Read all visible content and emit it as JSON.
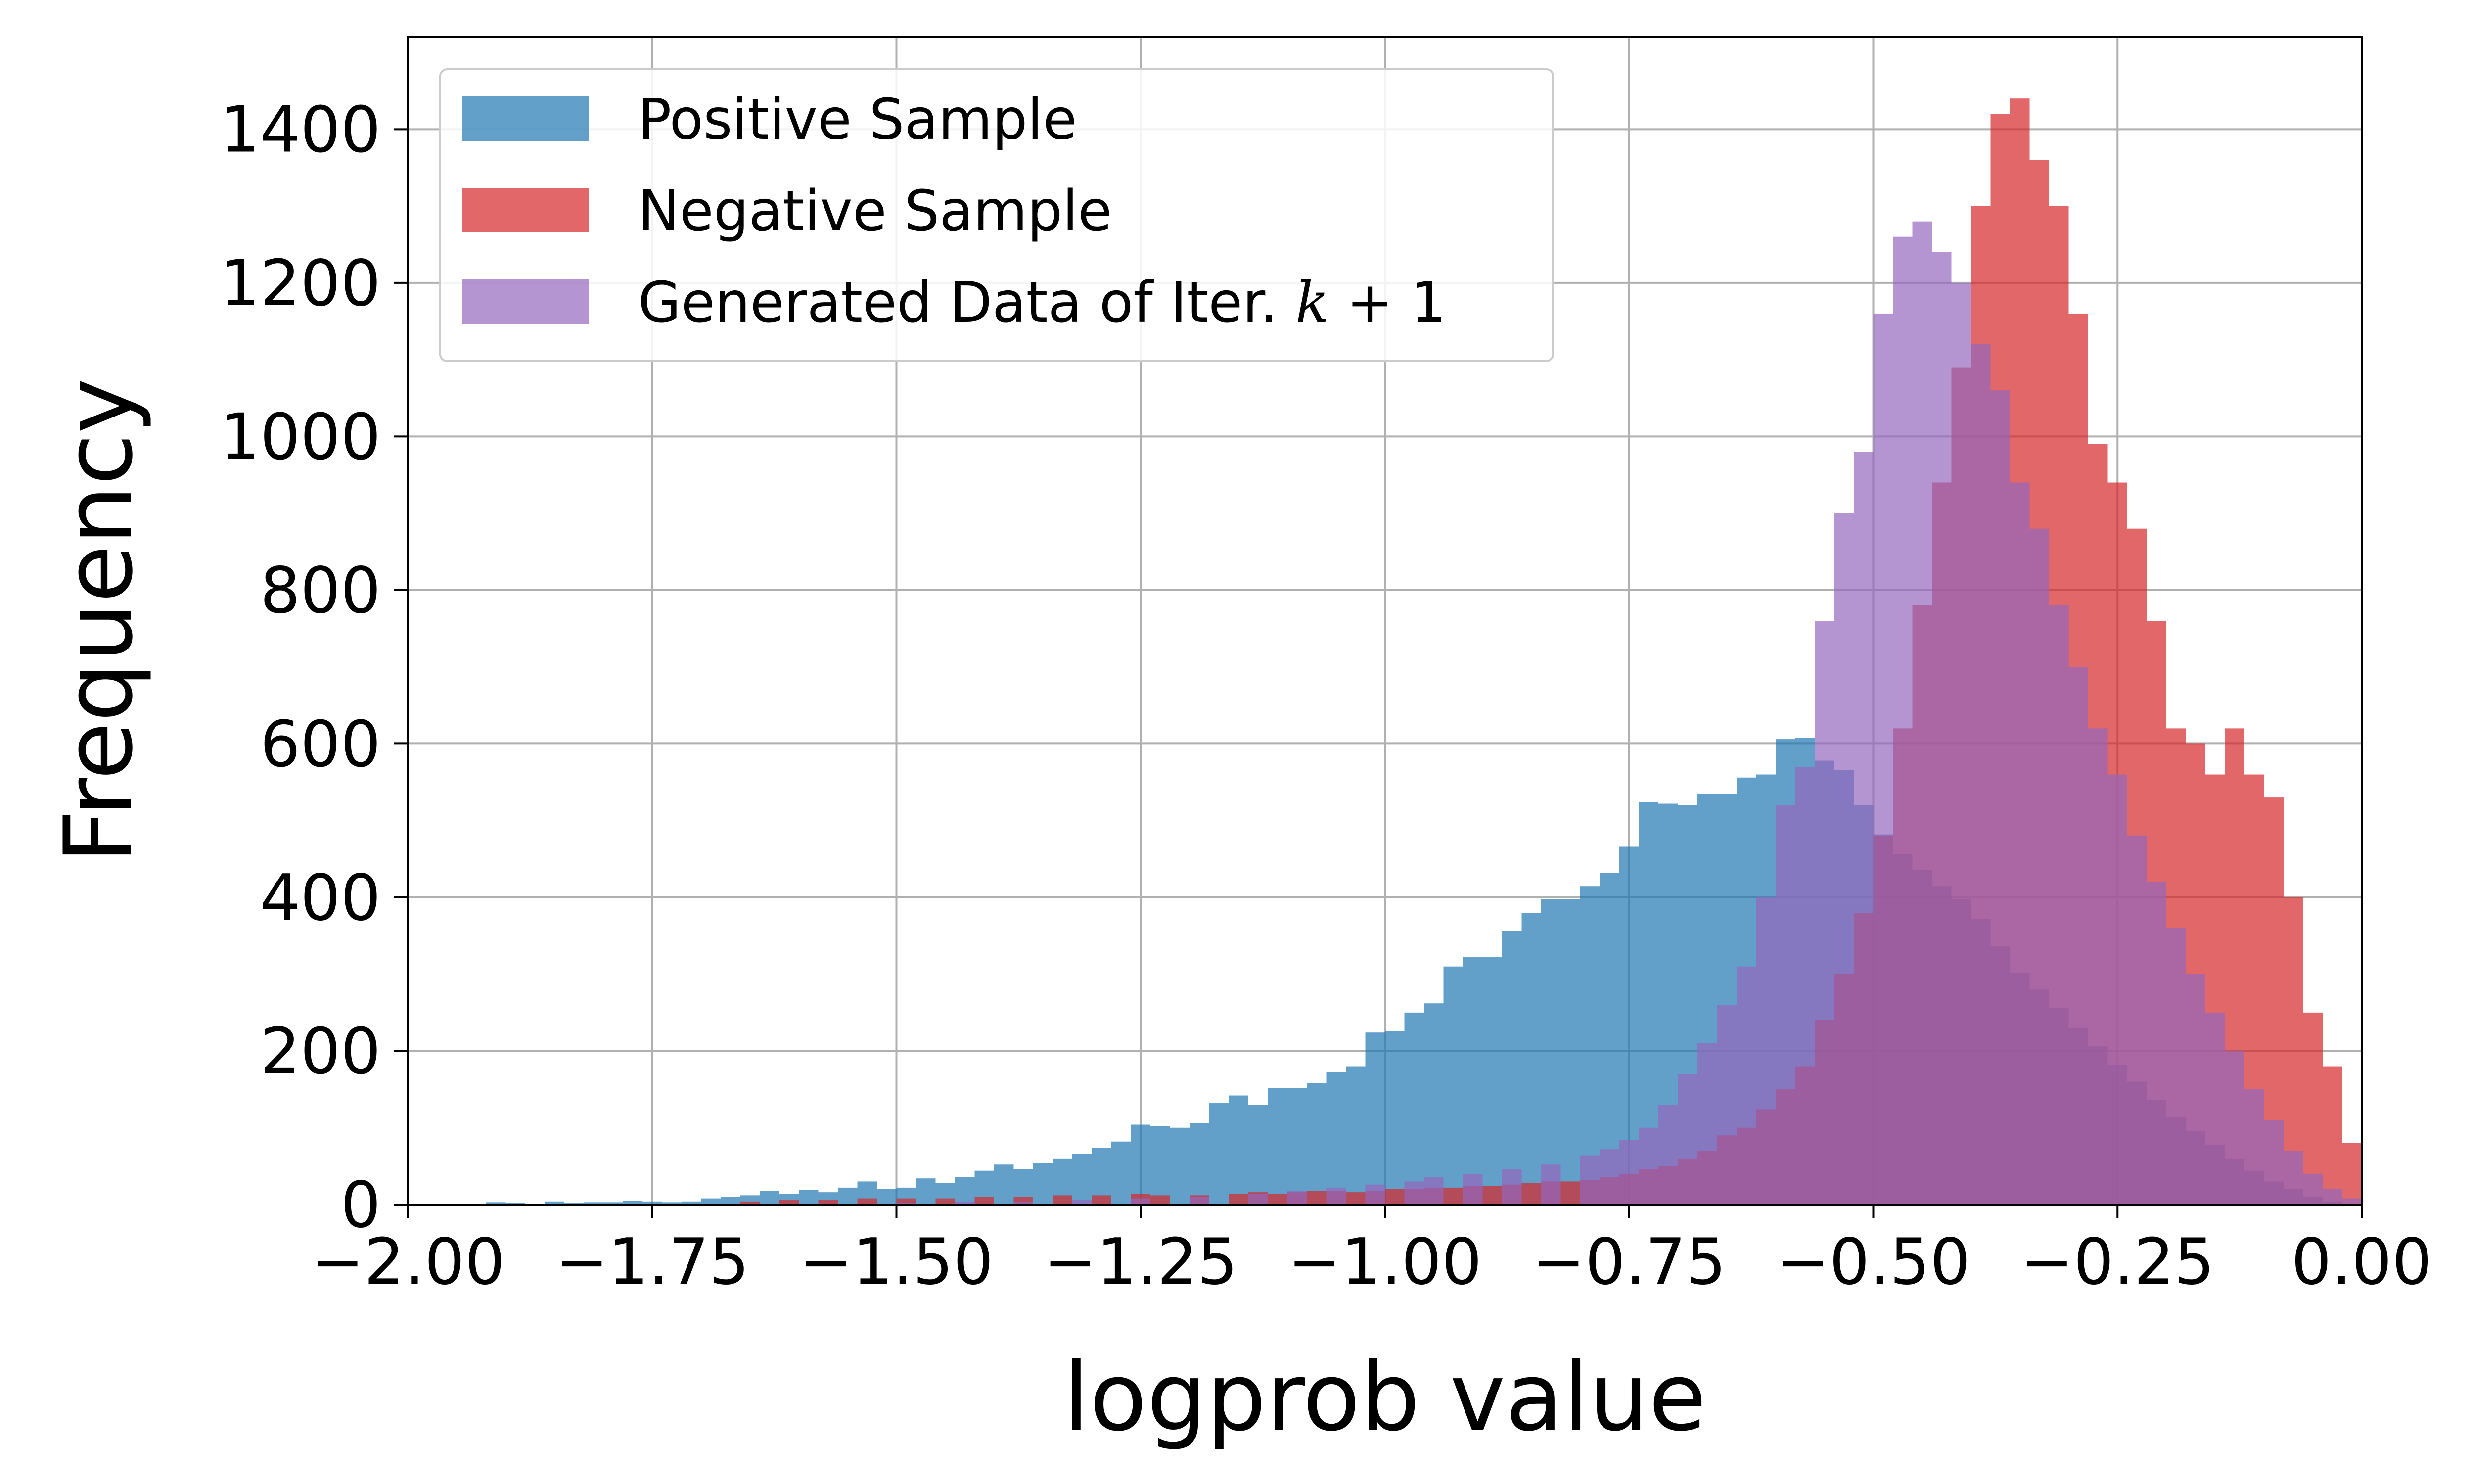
{
  "chart_data": {
    "type": "histogram",
    "xlabel": "logprob value",
    "ylabel": "Frequency",
    "xlim": [
      -2.0,
      0.0
    ],
    "ylim": [
      0,
      1520
    ],
    "bin_width": 0.02,
    "grid": true,
    "legend_position": "top-left",
    "x_ticks": [
      -2.0,
      -1.75,
      -1.5,
      -1.25,
      -1.0,
      -0.75,
      -0.5,
      -0.25,
      0.0
    ],
    "x_tick_labels": [
      "−2.00",
      "−1.75",
      "−1.50",
      "−1.25",
      "−1.00",
      "−0.75",
      "−0.50",
      "−0.25",
      "0.00"
    ],
    "y_ticks": [
      0,
      200,
      400,
      600,
      800,
      1000,
      1200,
      1400
    ],
    "y_tick_labels": [
      "0",
      "200",
      "400",
      "600",
      "800",
      "1000",
      "1200",
      "1400"
    ],
    "series": [
      {
        "name": "Positive Sample",
        "color": "#1f77b4",
        "opacity": 0.7,
        "bins": [
          [
            -1.98,
            1
          ],
          [
            -1.96,
            1
          ],
          [
            -1.94,
            1
          ],
          [
            -1.92,
            3
          ],
          [
            -1.9,
            2
          ],
          [
            -1.88,
            1
          ],
          [
            -1.86,
            4
          ],
          [
            -1.84,
            2
          ],
          [
            -1.82,
            3
          ],
          [
            -1.8,
            3
          ],
          [
            -1.78,
            5
          ],
          [
            -1.76,
            4
          ],
          [
            -1.74,
            3
          ],
          [
            -1.72,
            4
          ],
          [
            -1.7,
            8
          ],
          [
            -1.68,
            10
          ],
          [
            -1.66,
            12
          ],
          [
            -1.64,
            18
          ],
          [
            -1.62,
            14
          ],
          [
            -1.6,
            19
          ],
          [
            -1.58,
            16
          ],
          [
            -1.56,
            22
          ],
          [
            -1.54,
            30
          ],
          [
            -1.52,
            20
          ],
          [
            -1.5,
            22
          ],
          [
            -1.48,
            34
          ],
          [
            -1.46,
            28
          ],
          [
            -1.44,
            36
          ],
          [
            -1.42,
            44
          ],
          [
            -1.4,
            52
          ],
          [
            -1.38,
            46
          ],
          [
            -1.36,
            54
          ],
          [
            -1.34,
            60
          ],
          [
            -1.32,
            66
          ],
          [
            -1.3,
            74
          ],
          [
            -1.28,
            82
          ],
          [
            -1.26,
            104
          ],
          [
            -1.24,
            102
          ],
          [
            -1.22,
            100
          ],
          [
            -1.2,
            106
          ],
          [
            -1.18,
            132
          ],
          [
            -1.16,
            142
          ],
          [
            -1.14,
            130
          ],
          [
            -1.12,
            152
          ],
          [
            -1.1,
            152
          ],
          [
            -1.08,
            158
          ],
          [
            -1.06,
            172
          ],
          [
            -1.04,
            180
          ],
          [
            -1.02,
            224
          ],
          [
            -1.0,
            226
          ],
          [
            -0.98,
            250
          ],
          [
            -0.96,
            262
          ],
          [
            -0.94,
            310
          ],
          [
            -0.92,
            322
          ],
          [
            -0.9,
            322
          ],
          [
            -0.88,
            356
          ],
          [
            -0.86,
            380
          ],
          [
            -0.84,
            398
          ],
          [
            -0.82,
            398
          ],
          [
            -0.8,
            414
          ],
          [
            -0.78,
            432
          ],
          [
            -0.76,
            466
          ],
          [
            -0.74,
            524
          ],
          [
            -0.72,
            522
          ],
          [
            -0.7,
            520
          ],
          [
            -0.68,
            534
          ],
          [
            -0.66,
            534
          ],
          [
            -0.64,
            556
          ],
          [
            -0.62,
            560
          ],
          [
            -0.6,
            606
          ],
          [
            -0.58,
            608
          ],
          [
            -0.56,
            578
          ],
          [
            -0.54,
            566
          ],
          [
            -0.52,
            520
          ],
          [
            -0.5,
            482
          ],
          [
            -0.48,
            456
          ],
          [
            -0.46,
            436
          ],
          [
            -0.44,
            414
          ],
          [
            -0.42,
            398
          ],
          [
            -0.4,
            372
          ],
          [
            -0.38,
            336
          ],
          [
            -0.36,
            302
          ],
          [
            -0.34,
            280
          ],
          [
            -0.32,
            256
          ],
          [
            -0.3,
            230
          ],
          [
            -0.28,
            206
          ],
          [
            -0.26,
            182
          ],
          [
            -0.24,
            160
          ],
          [
            -0.22,
            136
          ],
          [
            -0.2,
            114
          ],
          [
            -0.18,
            96
          ],
          [
            -0.16,
            78
          ],
          [
            -0.14,
            60
          ],
          [
            -0.12,
            44
          ],
          [
            -0.1,
            30
          ],
          [
            -0.08,
            20
          ],
          [
            -0.06,
            10
          ],
          [
            -0.04,
            4
          ]
        ]
      },
      {
        "name": "Negative Sample",
        "color": "#d62728",
        "opacity": 0.7,
        "bins": [
          [
            -1.66,
            4
          ],
          [
            -1.62,
            6
          ],
          [
            -1.58,
            6
          ],
          [
            -1.54,
            8
          ],
          [
            -1.5,
            8
          ],
          [
            -1.46,
            8
          ],
          [
            -1.42,
            10
          ],
          [
            -1.38,
            10
          ],
          [
            -1.34,
            12
          ],
          [
            -1.3,
            12
          ],
          [
            -1.26,
            14
          ],
          [
            -1.24,
            12
          ],
          [
            -1.2,
            12
          ],
          [
            -1.16,
            14
          ],
          [
            -1.14,
            16
          ],
          [
            -1.12,
            14
          ],
          [
            -1.1,
            16
          ],
          [
            -1.08,
            18
          ],
          [
            -1.06,
            18
          ],
          [
            -1.04,
            16
          ],
          [
            -1.02,
            18
          ],
          [
            -1.0,
            20
          ],
          [
            -0.98,
            20
          ],
          [
            -0.96,
            22
          ],
          [
            -0.94,
            22
          ],
          [
            -0.92,
            24
          ],
          [
            -0.9,
            24
          ],
          [
            -0.88,
            26
          ],
          [
            -0.86,
            28
          ],
          [
            -0.84,
            30
          ],
          [
            -0.82,
            30
          ],
          [
            -0.8,
            32
          ],
          [
            -0.78,
            36
          ],
          [
            -0.76,
            40
          ],
          [
            -0.74,
            46
          ],
          [
            -0.72,
            50
          ],
          [
            -0.7,
            60
          ],
          [
            -0.68,
            70
          ],
          [
            -0.66,
            90
          ],
          [
            -0.64,
            100
          ],
          [
            -0.62,
            124
          ],
          [
            -0.6,
            150
          ],
          [
            -0.58,
            180
          ],
          [
            -0.56,
            240
          ],
          [
            -0.54,
            300
          ],
          [
            -0.52,
            380
          ],
          [
            -0.5,
            480
          ],
          [
            -0.48,
            620
          ],
          [
            -0.46,
            780
          ],
          [
            -0.44,
            940
          ],
          [
            -0.42,
            1090
          ],
          [
            -0.4,
            1300
          ],
          [
            -0.38,
            1420
          ],
          [
            -0.36,
            1440
          ],
          [
            -0.34,
            1360
          ],
          [
            -0.32,
            1300
          ],
          [
            -0.3,
            1160
          ],
          [
            -0.28,
            990
          ],
          [
            -0.26,
            940
          ],
          [
            -0.24,
            880
          ],
          [
            -0.22,
            760
          ],
          [
            -0.2,
            620
          ],
          [
            -0.18,
            600
          ],
          [
            -0.16,
            560
          ],
          [
            -0.14,
            620
          ],
          [
            -0.12,
            560
          ],
          [
            -0.1,
            530
          ],
          [
            -0.08,
            400
          ],
          [
            -0.06,
            250
          ],
          [
            -0.04,
            180
          ],
          [
            -0.02,
            80
          ],
          [
            0.0,
            30
          ]
        ]
      },
      {
        "name": "Generated Data of Iter. k + 1",
        "color": "#9467bd",
        "opacity": 0.7,
        "bins": [
          [
            -1.5,
            2
          ],
          [
            -1.44,
            4
          ],
          [
            -1.38,
            4
          ],
          [
            -1.32,
            6
          ],
          [
            -1.26,
            8
          ],
          [
            -1.2,
            10
          ],
          [
            -1.14,
            14
          ],
          [
            -1.1,
            18
          ],
          [
            -1.06,
            22
          ],
          [
            -1.02,
            26
          ],
          [
            -0.98,
            30
          ],
          [
            -0.96,
            36
          ],
          [
            -0.92,
            40
          ],
          [
            -0.88,
            46
          ],
          [
            -0.84,
            52
          ],
          [
            -0.8,
            64
          ],
          [
            -0.78,
            72
          ],
          [
            -0.76,
            84
          ],
          [
            -0.74,
            100
          ],
          [
            -0.72,
            130
          ],
          [
            -0.7,
            170
          ],
          [
            -0.68,
            210
          ],
          [
            -0.66,
            260
          ],
          [
            -0.64,
            310
          ],
          [
            -0.62,
            400
          ],
          [
            -0.6,
            520
          ],
          [
            -0.58,
            570
          ],
          [
            -0.56,
            760
          ],
          [
            -0.54,
            900
          ],
          [
            -0.52,
            980
          ],
          [
            -0.5,
            1160
          ],
          [
            -0.48,
            1260
          ],
          [
            -0.46,
            1280
          ],
          [
            -0.44,
            1240
          ],
          [
            -0.42,
            1200
          ],
          [
            -0.4,
            1120
          ],
          [
            -0.38,
            1060
          ],
          [
            -0.36,
            940
          ],
          [
            -0.34,
            880
          ],
          [
            -0.32,
            780
          ],
          [
            -0.3,
            700
          ],
          [
            -0.28,
            620
          ],
          [
            -0.26,
            560
          ],
          [
            -0.24,
            480
          ],
          [
            -0.22,
            420
          ],
          [
            -0.2,
            360
          ],
          [
            -0.18,
            300
          ],
          [
            -0.16,
            250
          ],
          [
            -0.14,
            200
          ],
          [
            -0.12,
            150
          ],
          [
            -0.1,
            110
          ],
          [
            -0.08,
            70
          ],
          [
            -0.06,
            40
          ],
          [
            -0.04,
            20
          ],
          [
            -0.02,
            8
          ]
        ]
      }
    ]
  },
  "legend": {
    "items": [
      {
        "label": "Positive Sample",
        "color": "#1f77b4"
      },
      {
        "label": "Negative Sample",
        "color": "#d62728"
      },
      {
        "label_prefix": "Generated Data of Iter. ",
        "label_math_var": "k",
        "label_math_rest": " + 1",
        "color": "#9467bd"
      }
    ]
  }
}
